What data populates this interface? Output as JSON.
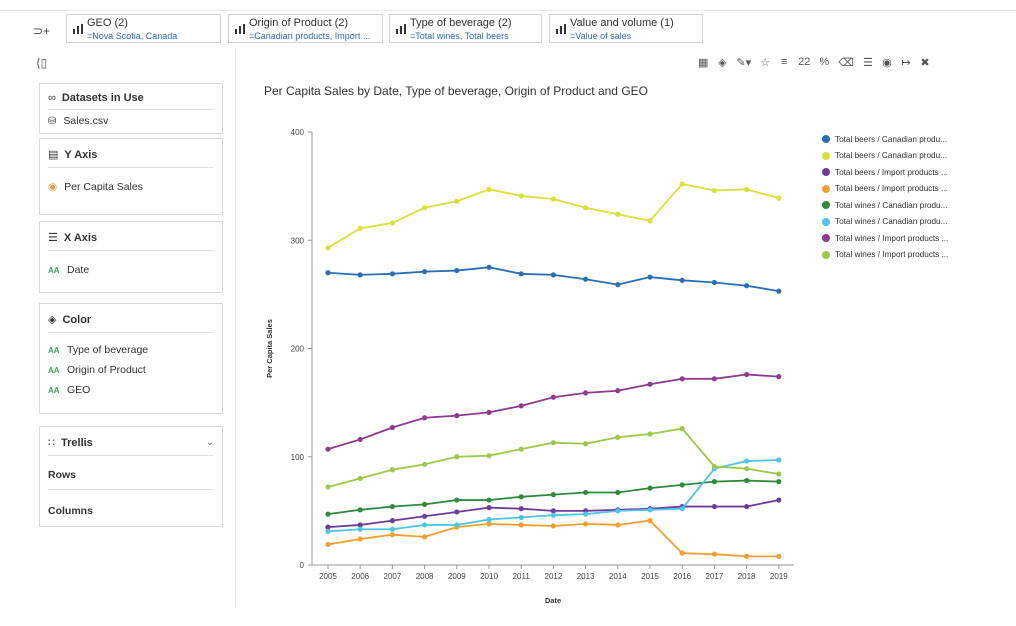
{
  "filters": [
    {
      "label": "GEO (2)",
      "value": "=Nova Scotia, Canada"
    },
    {
      "label": "Origin of Product (2)",
      "value": "=Canadian products, Import ..."
    },
    {
      "label": "Type of beverage (2)",
      "value": "=Total wines, Total beers"
    },
    {
      "label": "Value and volume (1)",
      "value": "=Value of sales"
    }
  ],
  "sidebar": {
    "datasets": {
      "title": "Datasets in Use",
      "file": "Sales.csv"
    },
    "y_axis": {
      "title": "Y Axis",
      "measure": "Per Capita Sales"
    },
    "x_axis": {
      "title": "X Axis",
      "field": "Date"
    },
    "color": {
      "title": "Color",
      "fields": [
        "Type of beverage",
        "Origin of Product",
        "GEO"
      ]
    },
    "trellis": {
      "title": "Trellis",
      "rows": "Rows",
      "columns": "Columns"
    }
  },
  "toolbar": {
    "number_format": "22",
    "percent": "%"
  },
  "chart_data": {
    "type": "line",
    "title": "Per Capita Sales by Date, Type of beverage, Origin of Product and GEO",
    "xlabel": "Date",
    "ylabel": "Per Capita Sales",
    "ylim": [
      0,
      400
    ],
    "yticks": [
      0,
      100,
      200,
      300,
      400
    ],
    "x": [
      "2005",
      "2006",
      "2007",
      "2008",
      "2009",
      "2010",
      "2011",
      "2012",
      "2013",
      "2014",
      "2015",
      "2016",
      "2017",
      "2018",
      "2019"
    ],
    "grid": false,
    "legend_position": "right",
    "series": [
      {
        "name": "Total beers / Canadian produ...",
        "color": "#2a6eb5",
        "values": [
          270,
          268,
          269,
          271,
          272,
          275,
          269,
          268,
          264,
          259,
          266,
          263,
          261,
          258,
          253
        ]
      },
      {
        "name": "Total beers / Canadian produ...",
        "color": "#d8e03a",
        "values": [
          293,
          311,
          316,
          330,
          336,
          347,
          341,
          338,
          330,
          324,
          318,
          352,
          346,
          347,
          339
        ]
      },
      {
        "name": "Total beers / Import products ...",
        "color": "#6a3d9a",
        "values": [
          35,
          37,
          41,
          45,
          49,
          53,
          52,
          50,
          50,
          51,
          52,
          54,
          54,
          54,
          60
        ]
      },
      {
        "name": "Total beers / Import products ...",
        "color": "#f0a030",
        "values": [
          19,
          24,
          28,
          26,
          35,
          38,
          37,
          36,
          38,
          37,
          41,
          11,
          10,
          8,
          8
        ]
      },
      {
        "name": "Total wines / Canadian produ...",
        "color": "#2e8b3e",
        "values": [
          47,
          51,
          54,
          56,
          60,
          60,
          63,
          65,
          67,
          67,
          71,
          74,
          77,
          78,
          77
        ]
      },
      {
        "name": "Total wines / Canadian produ...",
        "color": "#4fc3e8",
        "values": [
          31,
          33,
          33,
          37,
          37,
          42,
          44,
          46,
          47,
          50,
          51,
          52,
          89,
          96,
          97
        ]
      },
      {
        "name": "Total wines / Import products ...",
        "color": "#8e3b8e",
        "values": [
          107,
          116,
          127,
          136,
          138,
          141,
          147,
          155,
          159,
          161,
          167,
          172,
          172,
          176,
          174
        ]
      },
      {
        "name": "Total wines / Import products ...",
        "color": "#9cc84b",
        "values": [
          72,
          80,
          88,
          93,
          100,
          101,
          107,
          113,
          112,
          118,
          121,
          126,
          91,
          89,
          84
        ]
      }
    ]
  }
}
